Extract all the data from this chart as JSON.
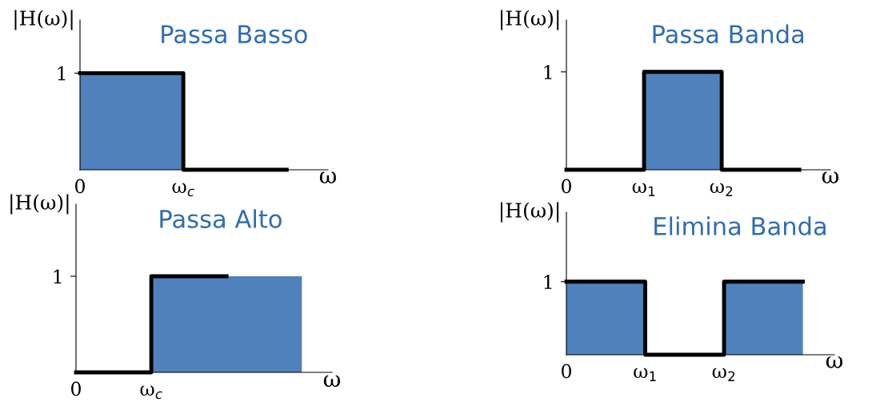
{
  "chart_data": [
    {
      "type": "step",
      "title": "Passa Basso",
      "ylabel": "|H(ω)|",
      "xlabel": "ω",
      "categories": [
        "0",
        "ω$_{c}$",
        null
      ],
      "ylim": [
        0,
        1.55
      ],
      "yticks": [
        1
      ],
      "grid": false,
      "legend": false,
      "series": [
        {
          "type": "area",
          "color": "#4f81bd",
          "values": [
            1,
            1,
            null
          ]
        },
        {
          "color": "#000000",
          "values": [
            1,
            0,
            0
          ]
        }
      ]
    },
    {
      "type": "step",
      "title": "Passa Banda",
      "ylabel": "|H(ω)|",
      "xlabel": "ω",
      "categories": [
        "0",
        "ω$_{1}$",
        "ω$_{2}$",
        null
      ],
      "ylim": [
        0,
        1.53
      ],
      "yticks": [
        1
      ],
      "grid": false,
      "legend": false,
      "series": [
        {
          "type": "area",
          "color": "#4f81bd",
          "values": [
            null,
            1,
            1,
            null
          ]
        },
        {
          "color": "#000000",
          "values": [
            0,
            1,
            0,
            0
          ]
        }
      ]
    },
    {
      "type": "step",
      "title": "Passa Alto",
      "ylabel": "|H(ω)|",
      "xlabel": "ω",
      "categories": [
        "0",
        "ω$_{c}$",
        null,
        null
      ],
      "ylim": [
        0,
        1.75
      ],
      "yticks": [
        1
      ],
      "grid": false,
      "legend": false,
      "series": [
        {
          "type": "area",
          "color": "#4f81bd",
          "values": [
            null,
            1,
            1,
            1
          ]
        },
        {
          "color": "#000000",
          "values": [
            0,
            1,
            1,
            null
          ]
        }
      ]
    },
    {
      "type": "step",
      "title": "Elimina Banda",
      "ylabel": "|H(ω)|",
      "xlabel": "ω",
      "categories": [
        "0",
        "ω$_{1}$",
        "ω$_{2}$",
        null
      ],
      "ylim": [
        0,
        1.95
      ],
      "yticks": [
        1
      ],
      "grid": false,
      "legend": false,
      "series": [
        {
          "type": "area",
          "color": "#4f81bd",
          "values": [
            1,
            1,
            null,
            null
          ]
        },
        {
          "type": "area",
          "color": "#4f81bd",
          "values": [
            null,
            null,
            1,
            1
          ]
        },
        {
          "color": "#000000",
          "values": [
            1,
            0,
            1,
            1
          ]
        }
      ]
    }
  ]
}
